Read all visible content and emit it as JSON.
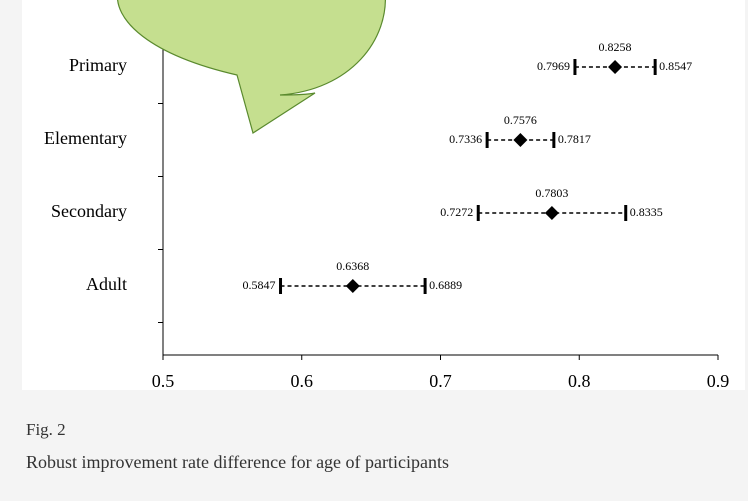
{
  "chart_data": {
    "type": "errorbar",
    "categories": [
      "Primary",
      "Elementary",
      "Secondary",
      "Adult"
    ],
    "values": [
      0.8258,
      0.7576,
      0.7803,
      0.6368
    ],
    "lower": [
      0.7969,
      0.7336,
      0.7272,
      0.5847
    ],
    "upper": [
      0.8547,
      0.7817,
      0.8335,
      0.6889
    ],
    "color": "#000000",
    "xlim": [
      0.5,
      0.9
    ],
    "xticks": [
      0.5,
      0.6,
      0.7,
      0.8,
      0.9
    ]
  },
  "caption": {
    "label": "Fig. 2",
    "text": "Robust improvement rate difference for age of participants"
  }
}
